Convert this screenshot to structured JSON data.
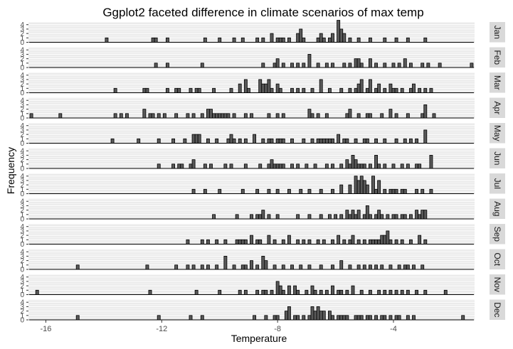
{
  "chart_data": {
    "type": "bar",
    "title": "Ggplot2 faceted difference in climate scenarios of max temp",
    "xlabel": "Temperature",
    "ylabel": "Frequency",
    "xlim": [
      -16.6,
      -1.2
    ],
    "ylim": [
      0,
      4.6
    ],
    "x_ticks": [
      -16,
      -12,
      -8,
      -4
    ],
    "x_tick_labels": [
      "-16",
      "-12",
      "-8",
      "-4"
    ],
    "y_ticks": [
      0,
      1,
      2,
      3,
      4
    ],
    "y_tick_labels": [
      "0",
      "1",
      "2",
      "3",
      "4"
    ],
    "bin_width": 0.1,
    "grid": true,
    "colors": {
      "panel_bg": "#ebebeb",
      "grid": "#ffffff",
      "bar_fill": "#595959",
      "bar_stroke": "#000000",
      "strip_bg": "#d9d9d9",
      "baseline": "#000000"
    },
    "facets": [
      {
        "label": "Jan",
        "x": [
          -13.9,
          -12.3,
          -12.2,
          -11.8,
          -10.5,
          -10.0,
          -9.5,
          -9.2,
          -8.7,
          -8.5,
          -8.2,
          -8.0,
          -7.9,
          -7.8,
          -7.6,
          -7.3,
          -7.2,
          -7.1,
          -6.6,
          -6.5,
          -6.4,
          -6.2,
          -6.1,
          -5.9,
          -5.8,
          -5.7,
          -5.5,
          -5.2,
          -4.8,
          -4.3,
          -3.9,
          -3.5,
          -2.9
        ],
        "y": [
          1,
          1,
          1,
          1,
          1,
          1,
          1,
          1,
          1,
          1,
          2,
          1,
          1,
          1,
          1,
          2,
          3,
          1,
          1,
          2,
          1,
          1,
          2,
          5,
          3,
          2,
          1,
          1,
          1,
          1,
          1,
          1,
          1
        ]
      },
      {
        "label": "Feb",
        "x": [
          -12.2,
          -11.8,
          -10.6,
          -8.5,
          -8.1,
          -8.0,
          -7.8,
          -7.5,
          -7.3,
          -7.1,
          -6.9,
          -6.6,
          -6.3,
          -6.1,
          -5.7,
          -5.5,
          -5.3,
          -5.2,
          -5.1,
          -4.8,
          -4.6,
          -4.3,
          -4.0,
          -3.8,
          -3.6,
          -3.4,
          -3.0,
          -2.8,
          -2.4,
          -1.3
        ],
        "y": [
          1,
          1,
          1,
          1,
          1,
          2,
          1,
          1,
          1,
          1,
          3,
          1,
          1,
          1,
          1,
          1,
          2,
          2,
          1,
          2,
          1,
          1,
          1,
          1,
          2,
          1,
          1,
          1,
          1,
          1
        ]
      },
      {
        "label": "Mar",
        "x": [
          -13.6,
          -12.6,
          -12.5,
          -11.8,
          -11.5,
          -11.4,
          -11.0,
          -10.8,
          -10.7,
          -10.2,
          -9.6,
          -9.3,
          -9.1,
          -9.0,
          -8.6,
          -8.5,
          -8.4,
          -8.3,
          -8.2,
          -8.0,
          -7.9,
          -7.5,
          -7.3,
          -7.1,
          -6.8,
          -6.5,
          -6.2,
          -5.8,
          -5.5,
          -5.3,
          -5.2,
          -5.1,
          -4.9,
          -4.8,
          -4.6,
          -4.5,
          -4.3,
          -4.1,
          -4.0,
          -3.9,
          -3.7,
          -3.4,
          -3.3,
          -3.1,
          -2.9,
          -2.7
        ],
        "y": [
          1,
          1,
          1,
          1,
          1,
          1,
          1,
          1,
          1,
          1,
          1,
          2,
          3,
          1,
          3,
          2,
          2,
          3,
          1,
          2,
          1,
          1,
          1,
          1,
          1,
          3,
          1,
          1,
          1,
          1,
          2,
          3,
          1,
          3,
          1,
          2,
          1,
          2,
          1,
          1,
          1,
          1,
          2,
          1,
          1,
          1
        ]
      },
      {
        "label": "Apr",
        "x": [
          -16.5,
          -15.5,
          -13.6,
          -13.4,
          -13.2,
          -12.6,
          -12.4,
          -12.3,
          -12.1,
          -11.9,
          -11.5,
          -11.1,
          -10.9,
          -10.6,
          -10.4,
          -10.3,
          -10.2,
          -10.1,
          -10.0,
          -9.9,
          -9.8,
          -9.7,
          -9.5,
          -9.1,
          -8.9,
          -8.3,
          -8.0,
          -7.8,
          -6.9,
          -6.8,
          -6.6,
          -6.3,
          -5.6,
          -5.5,
          -5.2,
          -4.9,
          -4.8,
          -4.4,
          -4.1,
          -3.9,
          -3.5,
          -3.0,
          -2.9,
          -2.6
        ],
        "y": [
          1,
          1,
          1,
          1,
          1,
          2,
          1,
          1,
          1,
          1,
          1,
          1,
          1,
          1,
          2,
          2,
          1,
          1,
          1,
          1,
          1,
          1,
          1,
          1,
          1,
          1,
          1,
          1,
          2,
          1,
          1,
          1,
          1,
          2,
          1,
          1,
          1,
          1,
          2,
          1,
          1,
          1,
          3,
          1
        ]
      },
      {
        "label": "May",
        "x": [
          -13.7,
          -12.8,
          -12.1,
          -11.6,
          -11.2,
          -10.9,
          -10.8,
          -10.7,
          -10.4,
          -10.1,
          -9.7,
          -9.6,
          -9.5,
          -9.3,
          -9.1,
          -8.8,
          -8.5,
          -8.3,
          -8.2,
          -8.0,
          -7.9,
          -7.8,
          -7.5,
          -7.1,
          -6.8,
          -6.6,
          -6.5,
          -6.4,
          -6.3,
          -6.2,
          -6.1,
          -5.9,
          -5.7,
          -5.6,
          -5.3,
          -5.0,
          -4.9,
          -4.6,
          -4.3,
          -3.9,
          -3.6,
          -3.4,
          -3.2,
          -2.9
        ],
        "y": [
          1,
          1,
          1,
          1,
          1,
          2,
          2,
          2,
          1,
          1,
          1,
          2,
          1,
          1,
          1,
          2,
          1,
          1,
          1,
          1,
          1,
          1,
          1,
          1,
          1,
          1,
          1,
          1,
          1,
          1,
          1,
          2,
          1,
          1,
          1,
          1,
          1,
          1,
          1,
          1,
          1,
          1,
          1,
          3
        ]
      },
      {
        "label": "Jun",
        "x": [
          -12.1,
          -11.6,
          -11.4,
          -11.3,
          -11.0,
          -10.9,
          -10.5,
          -10.3,
          -9.8,
          -9.6,
          -9.1,
          -8.6,
          -8.3,
          -8.2,
          -8.1,
          -8.0,
          -7.9,
          -7.8,
          -7.5,
          -7.3,
          -7.0,
          -6.7,
          -6.3,
          -6.1,
          -5.8,
          -5.6,
          -5.5,
          -5.4,
          -5.3,
          -5.2,
          -5.1,
          -5.0,
          -4.8,
          -4.6,
          -4.5,
          -4.3,
          -4.0,
          -3.7,
          -3.5,
          -3.2,
          -3.1,
          -2.7
        ],
        "y": [
          1,
          1,
          1,
          1,
          1,
          2,
          1,
          1,
          1,
          1,
          1,
          1,
          1,
          2,
          1,
          1,
          1,
          1,
          1,
          1,
          1,
          1,
          1,
          1,
          1,
          2,
          1,
          3,
          2,
          1,
          1,
          1,
          1,
          3,
          1,
          1,
          1,
          1,
          1,
          1,
          1,
          3
        ]
      },
      {
        "label": "Jul",
        "x": [
          -10.9,
          -10.5,
          -10.0,
          -9.2,
          -8.7,
          -8.3,
          -8.0,
          -7.6,
          -7.2,
          -6.9,
          -6.5,
          -6.1,
          -5.8,
          -5.5,
          -5.3,
          -5.2,
          -5.1,
          -5.0,
          -4.9,
          -4.7,
          -4.6,
          -4.5,
          -4.3,
          -4.1,
          -4.0,
          -3.9,
          -3.7,
          -3.6,
          -3.2,
          -3.0,
          -2.7
        ],
        "y": [
          1,
          1,
          1,
          1,
          1,
          1,
          1,
          1,
          1,
          1,
          1,
          1,
          2,
          2,
          4,
          3,
          4,
          3,
          2,
          4,
          1,
          3,
          1,
          1,
          1,
          1,
          1,
          1,
          1,
          1,
          1
        ]
      },
      {
        "label": "Aug",
        "x": [
          -10.2,
          -9.4,
          -8.9,
          -8.7,
          -8.6,
          -8.5,
          -8.3,
          -8.0,
          -7.3,
          -6.9,
          -6.5,
          -6.2,
          -6.0,
          -5.8,
          -5.6,
          -5.5,
          -5.4,
          -5.3,
          -5.2,
          -5.0,
          -4.9,
          -4.8,
          -4.6,
          -4.5,
          -4.4,
          -4.2,
          -4.0,
          -3.9,
          -3.7,
          -3.6,
          -3.4,
          -3.2,
          -3.1,
          -3.0,
          -2.9
        ],
        "y": [
          1,
          1,
          1,
          1,
          1,
          2,
          1,
          1,
          1,
          1,
          1,
          1,
          1,
          1,
          2,
          1,
          2,
          1,
          2,
          1,
          3,
          1,
          1,
          2,
          1,
          1,
          1,
          1,
          1,
          1,
          1,
          2,
          1,
          2,
          2
        ]
      },
      {
        "label": "Sep",
        "x": [
          -11.1,
          -10.6,
          -10.4,
          -10.1,
          -9.8,
          -9.4,
          -9.3,
          -9.2,
          -9.1,
          -8.9,
          -8.7,
          -8.6,
          -8.3,
          -8.1,
          -7.8,
          -7.6,
          -7.3,
          -7.1,
          -6.9,
          -6.6,
          -6.4,
          -6.1,
          -5.9,
          -5.7,
          -5.5,
          -5.4,
          -5.2,
          -5.0,
          -4.8,
          -4.7,
          -4.6,
          -4.5,
          -4.4,
          -4.3,
          -4.2,
          -4.1,
          -3.9,
          -3.7,
          -3.4,
          -3.1,
          -2.9
        ],
        "y": [
          1,
          1,
          1,
          1,
          1,
          1,
          1,
          1,
          1,
          2,
          1,
          1,
          2,
          1,
          1,
          2,
          1,
          1,
          1,
          1,
          1,
          1,
          2,
          1,
          1,
          2,
          1,
          1,
          1,
          1,
          1,
          1,
          2,
          2,
          3,
          1,
          1,
          1,
          1,
          2,
          1
        ]
      },
      {
        "label": "Oct",
        "x": [
          -14.9,
          -12.5,
          -11.5,
          -11.1,
          -10.9,
          -10.6,
          -10.4,
          -10.1,
          -9.8,
          -9.5,
          -9.2,
          -9.1,
          -8.9,
          -8.7,
          -8.5,
          -8.4,
          -8.1,
          -7.8,
          -7.5,
          -7.2,
          -6.9,
          -6.5,
          -6.1,
          -5.8,
          -5.5,
          -5.2,
          -5.0,
          -4.8,
          -4.6,
          -4.4,
          -4.1,
          -3.8,
          -3.6,
          -3.5,
          -3.3,
          -3.0
        ],
        "y": [
          1,
          1,
          1,
          1,
          1,
          1,
          1,
          1,
          3,
          1,
          1,
          1,
          2,
          1,
          3,
          2,
          1,
          1,
          1,
          1,
          1,
          1,
          1,
          2,
          1,
          1,
          1,
          1,
          1,
          1,
          1,
          1,
          1,
          1,
          1,
          1
        ]
      },
      {
        "label": "Nov",
        "x": [
          -16.3,
          -12.4,
          -10.8,
          -10.0,
          -9.3,
          -9.1,
          -8.7,
          -8.5,
          -8.4,
          -8.2,
          -8.0,
          -7.9,
          -7.8,
          -7.6,
          -7.4,
          -7.3,
          -7.0,
          -6.8,
          -6.7,
          -6.5,
          -6.3,
          -6.1,
          -5.9,
          -5.8,
          -5.6,
          -5.4,
          -5.1,
          -4.8,
          -4.5,
          -4.3,
          -4.1,
          -3.9,
          -3.7,
          -3.5,
          -3.2,
          -2.9,
          -2.2
        ],
        "y": [
          1,
          1,
          1,
          1,
          1,
          1,
          1,
          1,
          1,
          1,
          3,
          2,
          1,
          2,
          2,
          1,
          1,
          2,
          1,
          1,
          1,
          2,
          1,
          1,
          1,
          2,
          1,
          1,
          1,
          1,
          1,
          1,
          1,
          1,
          1,
          1,
          1
        ]
      },
      {
        "label": "Dec",
        "x": [
          -14.9,
          -12.1,
          -11.0,
          -10.6,
          -8.8,
          -8.4,
          -8.1,
          -8.0,
          -7.7,
          -7.6,
          -7.4,
          -7.3,
          -7.1,
          -6.9,
          -6.8,
          -6.7,
          -6.6,
          -6.5,
          -6.4,
          -6.2,
          -6.1,
          -5.9,
          -5.8,
          -5.7,
          -5.6,
          -5.3,
          -5.2,
          -5.1,
          -4.9,
          -4.8,
          -4.6,
          -4.4,
          -4.3,
          -4.1,
          -3.9,
          -3.8,
          -3.5,
          -3.3,
          -1.6
        ],
        "y": [
          1,
          1,
          1,
          1,
          1,
          1,
          1,
          1,
          2,
          3,
          1,
          1,
          1,
          1,
          3,
          2,
          3,
          2,
          2,
          2,
          1,
          1,
          1,
          1,
          1,
          1,
          1,
          1,
          1,
          1,
          1,
          1,
          1,
          1,
          1,
          1,
          1,
          1,
          1
        ]
      }
    ]
  }
}
